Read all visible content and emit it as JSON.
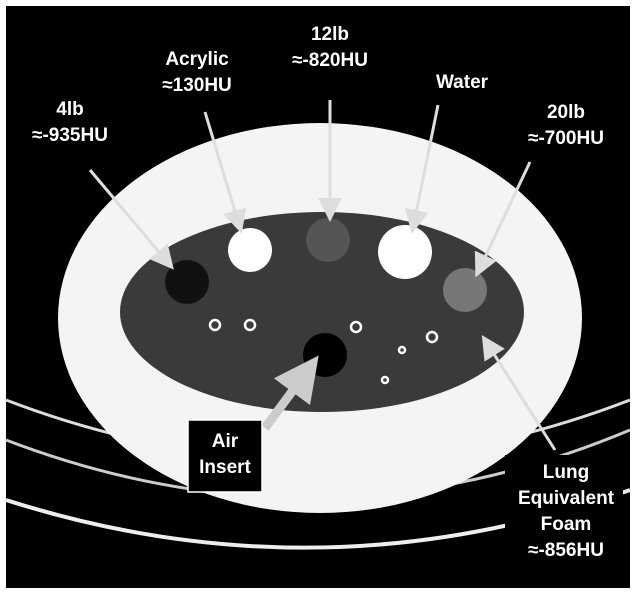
{
  "labels": [
    {
      "lines": [
        "4lb",
        "≈-935HU"
      ]
    },
    {
      "lines": [
        "Acrylic",
        "≈130HU"
      ]
    },
    {
      "lines": [
        "12lb",
        "≈-820HU"
      ]
    },
    {
      "lines": [
        "Water"
      ]
    },
    {
      "lines": [
        "20lb",
        "≈-700HU"
      ]
    },
    {
      "lines": [
        "Air",
        "Insert"
      ]
    },
    {
      "lines": [
        "Lung",
        "Equivalent",
        "Foam",
        "≈-856HU"
      ]
    }
  ]
}
